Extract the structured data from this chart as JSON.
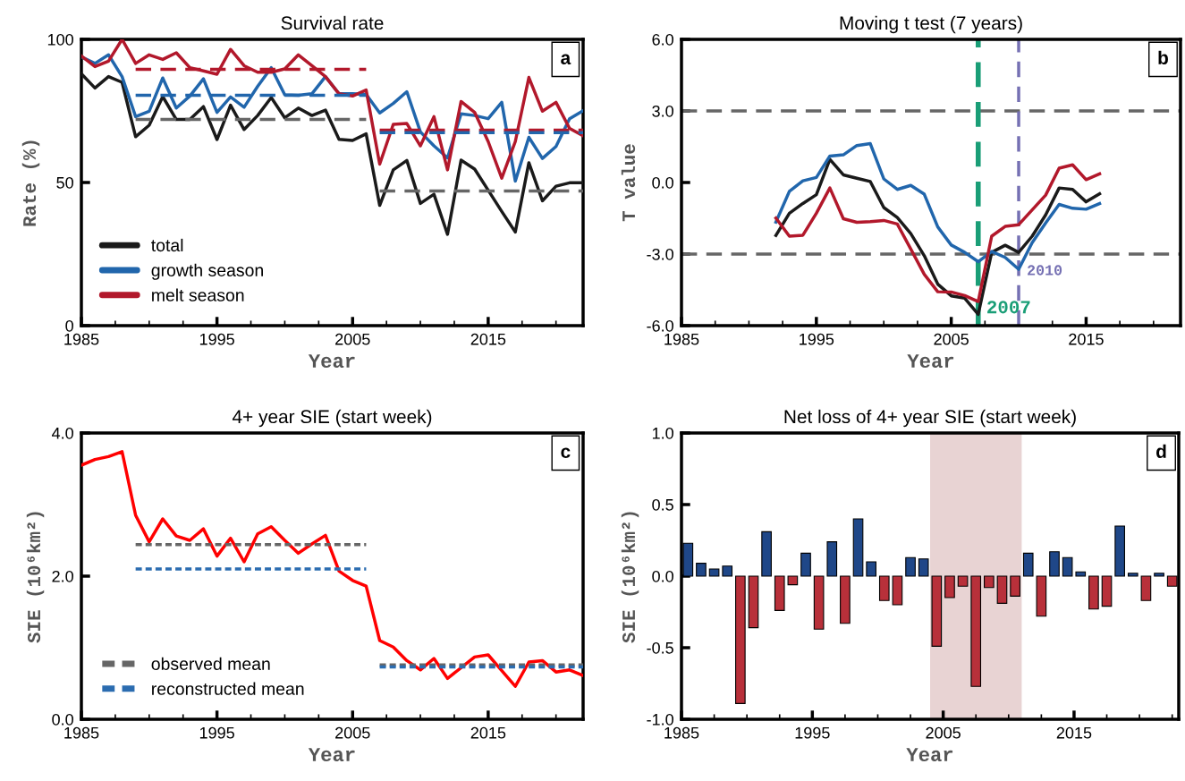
{
  "chart_data": [
    {
      "type": "line",
      "title": "Survival rate",
      "xlabel": "Year",
      "ylabel": "Rate (%)",
      "xlim": [
        1985,
        2022
      ],
      "xticks": [
        1985,
        1995,
        2005,
        2015
      ],
      "ylim": [
        0,
        100
      ],
      "yticks": [
        0,
        50,
        100
      ],
      "legend": "bottom left",
      "annotations": [
        "a"
      ],
      "series": [
        {
          "name": "total",
          "color": "#1a1a1a",
          "x": [
            1985,
            1986,
            1987,
            1988,
            1989,
            1990,
            1991,
            1992,
            1993,
            1994,
            1995,
            1996,
            1997,
            1998,
            1999,
            2000,
            2001,
            2002,
            2003,
            2004,
            2005,
            2006,
            2007,
            2008,
            2009,
            2010,
            2011,
            2012,
            2013,
            2014,
            2015,
            2016,
            2017,
            2018,
            2019,
            2020,
            2021,
            2022
          ],
          "values": [
            88,
            83,
            87,
            85,
            66,
            70,
            80,
            72,
            72,
            76.5,
            65,
            77,
            68.5,
            73.4,
            79.7,
            72.6,
            76,
            73.4,
            75.3,
            65.1,
            64.7,
            67,
            42,
            54.4,
            57.7,
            42.7,
            45.9,
            31.9,
            57.8,
            54.7,
            47.3,
            39.9,
            32.7,
            56.9,
            43.6,
            48.7,
            49.9,
            49.9
          ]
        },
        {
          "name": "growth season",
          "color": "#2166ac",
          "x": [
            1985,
            1986,
            1987,
            1988,
            1989,
            1990,
            1991,
            1992,
            1993,
            1994,
            1995,
            1996,
            1997,
            1998,
            1999,
            2000,
            2001,
            2002,
            2003,
            2004,
            2005,
            2006,
            2007,
            2008,
            2009,
            2010,
            2011,
            2012,
            2013,
            2014,
            2015,
            2016,
            2017,
            2018,
            2019,
            2020,
            2021,
            2022
          ],
          "values": [
            93.9,
            91.6,
            94.6,
            87,
            73,
            74.9,
            86.5,
            76,
            80.2,
            86.2,
            74.5,
            79.9,
            76.3,
            83.6,
            90.1,
            80.6,
            80.5,
            81,
            87,
            81,
            81,
            80.8,
            74.3,
            77.6,
            81.7,
            67.7,
            62.8,
            58.6,
            74,
            73.4,
            72.3,
            78,
            50.5,
            65.8,
            58.4,
            62.6,
            72.3,
            75.1
          ]
        },
        {
          "name": "melt season",
          "color": "#b2182b",
          "x": [
            1985,
            1986,
            1987,
            1988,
            1989,
            1990,
            1991,
            1992,
            1993,
            1994,
            1995,
            1996,
            1997,
            1998,
            1999,
            2000,
            2001,
            2002,
            2003,
            2004,
            2005,
            2006,
            2007,
            2008,
            2009,
            2010,
            2011,
            2012,
            2013,
            2014,
            2015,
            2016,
            2017,
            2018,
            2019,
            2020,
            2021,
            2022
          ],
          "values": [
            94.2,
            90.5,
            92.4,
            100,
            91.6,
            94.6,
            93,
            95.3,
            90.1,
            89,
            87.8,
            96.5,
            90.8,
            88.5,
            88.5,
            89.7,
            94.6,
            90.8,
            87,
            81,
            80.2,
            82.3,
            56.4,
            70.3,
            70.6,
            62.8,
            73,
            54.4,
            78.3,
            74.5,
            64.3,
            51.5,
            64.3,
            86.7,
            74.9,
            78,
            68.9,
            66.3
          ]
        },
        {
          "color": "#b2182b",
          "line_style": "dashed",
          "x": [
            1989,
            2006
          ],
          "values": [
            89.5,
            89.5
          ]
        },
        {
          "color": "#b2182b",
          "line_style": "dashed",
          "x": [
            2007,
            2022
          ],
          "values": [
            68.3,
            68.3
          ]
        },
        {
          "color": "#2166ac",
          "line_style": "dashed",
          "x": [
            1989,
            2006
          ],
          "values": [
            80.5,
            80.5
          ]
        },
        {
          "color": "#2166ac",
          "line_style": "dashed",
          "x": [
            2007,
            2022
          ],
          "values": [
            67.4,
            67.4
          ]
        },
        {
          "color": "#666666",
          "line_style": "dashed",
          "x": [
            1989,
            2006
          ],
          "values": [
            72,
            72
          ]
        },
        {
          "color": "#666666",
          "line_style": "dashed",
          "x": [
            2007,
            2022
          ],
          "values": [
            47,
            47
          ]
        }
      ]
    },
    {
      "type": "line",
      "title": "Moving t test (7 years)",
      "xlabel": "Year",
      "ylabel": "T value",
      "xlim": [
        1985,
        2022
      ],
      "xticks": [
        1985,
        1995,
        2005,
        2015
      ],
      "ylim": [
        -6,
        6
      ],
      "yticks": [
        {
          "value": -6,
          "label": "-6.0"
        },
        {
          "value": -3,
          "label": "-3.0"
        },
        {
          "value": 0,
          "label": "0.0"
        },
        {
          "value": 3,
          "label": "3.0"
        },
        {
          "value": 6,
          "label": "6.0"
        }
      ],
      "annotations": [
        "b"
      ],
      "ref_lines": [
        {
          "axis": "y",
          "value": 3,
          "color": "#666666",
          "line_style": "dashed"
        },
        {
          "axis": "y",
          "value": -3,
          "color": "#666666",
          "line_style": "dashed"
        },
        {
          "axis": "x",
          "value": 2007,
          "label": "2007",
          "color": "#1a9e77",
          "line_style": "dashed"
        },
        {
          "axis": "x",
          "value": 2010,
          "label": "2010",
          "color": "#7570b3",
          "line_style": "dashed"
        }
      ],
      "series": [
        {
          "color": "#1a1a1a",
          "x": [
            1992,
            1993,
            1994,
            1995,
            1996,
            1997,
            1998,
            1999,
            2000,
            2001,
            2002,
            2003,
            2004,
            2005,
            2006,
            2007,
            2008,
            2009,
            2010,
            2011,
            2012,
            2013,
            2014,
            2015,
            2016
          ],
          "values": [
            -2.22,
            -1.29,
            -0.88,
            -0.51,
            0.97,
            0.32,
            0.18,
            0.04,
            -1.05,
            -1.47,
            -2.14,
            -3.07,
            -4.26,
            -4.75,
            -4.85,
            -5.53,
            -2.93,
            -2.63,
            -2.93,
            -2.25,
            -1.36,
            -0.23,
            -0.29,
            -0.81,
            -0.47
          ]
        },
        {
          "color": "#2166ac",
          "x": [
            1992,
            1993,
            1994,
            1995,
            1996,
            1997,
            1998,
            1999,
            2000,
            2001,
            2002,
            2003,
            2004,
            2005,
            2006,
            2007,
            2008,
            2009,
            2010,
            2011,
            2012,
            2013,
            2014,
            2015,
            2016
          ],
          "values": [
            -1.66,
            -0.37,
            0.07,
            0.21,
            1.11,
            1.16,
            1.55,
            1.63,
            0.15,
            -0.29,
            -0.12,
            -0.49,
            -1.86,
            -2.62,
            -2.93,
            -3.32,
            -2.89,
            -3.14,
            -3.64,
            -2.52,
            -1.7,
            -0.92,
            -1.08,
            -1.12,
            -0.88
          ]
        },
        {
          "color": "#b2182b",
          "x": [
            1992,
            1993,
            1994,
            1995,
            1996,
            1997,
            1998,
            1999,
            2000,
            2001,
            2002,
            2003,
            2004,
            2005,
            2006,
            2007,
            2008,
            2009,
            2010,
            2011,
            2012,
            2013,
            2014,
            2015,
            2016
          ],
          "values": [
            -1.49,
            -2.25,
            -2.21,
            -1.29,
            -0.23,
            -1.52,
            -1.67,
            -1.64,
            -1.59,
            -1.74,
            -2.79,
            -3.85,
            -4.58,
            -4.59,
            -4.74,
            -4.99,
            -2.25,
            -1.84,
            -1.77,
            -1.15,
            -0.53,
            0.6,
            0.74,
            0.12,
            0.36
          ]
        }
      ]
    },
    {
      "type": "line",
      "title": "4+ year SIE (start week)",
      "xlabel": "Year",
      "ylabel": "SIE (10⁶km²)",
      "xlim": [
        1985,
        2022
      ],
      "xticks": [
        1985,
        1995,
        2005,
        2015
      ],
      "ylim": [
        0,
        4
      ],
      "yticks": [
        {
          "value": 0,
          "label": "0.0"
        },
        {
          "value": 2,
          "label": "2.0"
        },
        {
          "value": 4,
          "label": "4.0"
        }
      ],
      "legend": "bottom left",
      "annotations": [
        "c"
      ],
      "series": [
        {
          "color": "#ff0000",
          "x": [
            1985,
            1986,
            1987,
            1988,
            1989,
            1990,
            1991,
            1992,
            1993,
            1994,
            1995,
            1996,
            1997,
            1998,
            1999,
            2000,
            2001,
            2002,
            2003,
            2004,
            2005,
            2006,
            2007,
            2008,
            2009,
            2010,
            2011,
            2012,
            2013,
            2014,
            2015,
            2016,
            2017,
            2018,
            2019,
            2020,
            2021,
            2022
          ],
          "values": [
            3.55,
            3.63,
            3.67,
            3.74,
            2.85,
            2.48,
            2.8,
            2.56,
            2.5,
            2.66,
            2.28,
            2.53,
            2.2,
            2.59,
            2.69,
            2.5,
            2.32,
            2.45,
            2.57,
            2.07,
            1.94,
            1.86,
            1.1,
            1.01,
            0.82,
            0.69,
            0.85,
            0.57,
            0.72,
            0.87,
            0.9,
            0.68,
            0.46,
            0.8,
            0.82,
            0.66,
            0.69,
            0.61
          ]
        },
        {
          "name": "observed mean",
          "color": "#666666",
          "line_style": "dotted",
          "x": [
            1989,
            2006
          ],
          "values": [
            2.44,
            2.44
          ]
        },
        {
          "name": "reconstructed mean",
          "color": "#2b6cb0",
          "line_style": "dotted",
          "x": [
            1989,
            2006
          ],
          "values": [
            2.1,
            2.1
          ]
        },
        {
          "color": "#666666",
          "line_style": "dotted",
          "x": [
            2007,
            2022
          ],
          "values": [
            0.76,
            0.76
          ]
        },
        {
          "color": "#2b6cb0",
          "line_style": "dotted",
          "x": [
            2007,
            2022
          ],
          "values": [
            0.73,
            0.73
          ]
        }
      ]
    },
    {
      "type": "bar",
      "title": "Net loss of 4+ year SIE (start week)",
      "xlabel": "Year",
      "ylabel": "SIE (10⁶km²)",
      "xlim": [
        1985,
        2023
      ],
      "xticks": [
        1985,
        1995,
        2005,
        2015
      ],
      "ylim": [
        -1,
        1
      ],
      "yticks": [
        {
          "value": -1,
          "label": "-1.0"
        },
        {
          "value": -0.5,
          "label": "-0.5"
        },
        {
          "value": 0,
          "label": "0.0"
        },
        {
          "value": 0.5,
          "label": "0.5"
        },
        {
          "value": 1,
          "label": "1.0"
        }
      ],
      "annotations": [
        "d"
      ],
      "bands": [
        {
          "axis": "x",
          "from": 2004,
          "to": 2011,
          "color": "#e8d3d3"
        }
      ],
      "x": [
        1985.5,
        1986.5,
        1987.5,
        1988.5,
        1989.5,
        1990.5,
        1991.5,
        1992.5,
        1993.5,
        1994.5,
        1995.5,
        1996.5,
        1997.5,
        1998.5,
        1999.5,
        2000.5,
        2001.5,
        2002.5,
        2003.5,
        2004.5,
        2005.5,
        2006.5,
        2007.5,
        2008.5,
        2009.5,
        2010.5,
        2011.5,
        2012.5,
        2013.5,
        2014.5,
        2015.5,
        2016.5,
        2017.5,
        2018.5,
        2019.5,
        2020.5,
        2021.5,
        2022.5
      ],
      "values": [
        0.23,
        0.09,
        0.05,
        0.07,
        -0.89,
        -0.36,
        0.31,
        -0.24,
        -0.06,
        0.16,
        -0.37,
        0.24,
        -0.33,
        0.4,
        0.1,
        -0.17,
        -0.2,
        0.13,
        0.12,
        -0.49,
        -0.15,
        -0.07,
        -0.77,
        -0.08,
        -0.19,
        -0.14,
        0.16,
        -0.28,
        0.17,
        0.13,
        0.03,
        -0.23,
        -0.21,
        0.35,
        0.02,
        -0.17,
        0.02,
        -0.07
      ],
      "colors": [
        "#1f4788",
        "#1f4788",
        "#1f4788",
        "#1f4788",
        "#b8303a",
        "#b8303a",
        "#1f4788",
        "#b8303a",
        "#b8303a",
        "#1f4788",
        "#b8303a",
        "#1f4788",
        "#b8303a",
        "#1f4788",
        "#1f4788",
        "#b8303a",
        "#b8303a",
        "#1f4788",
        "#1f4788",
        "#b8303a",
        "#b8303a",
        "#b8303a",
        "#b8303a",
        "#b8303a",
        "#b8303a",
        "#b8303a",
        "#1f4788",
        "#b8303a",
        "#1f4788",
        "#1f4788",
        "#1f4788",
        "#b8303a",
        "#b8303a",
        "#1f4788",
        "#1f4788",
        "#b8303a",
        "#1f4788",
        "#b8303a"
      ]
    }
  ]
}
